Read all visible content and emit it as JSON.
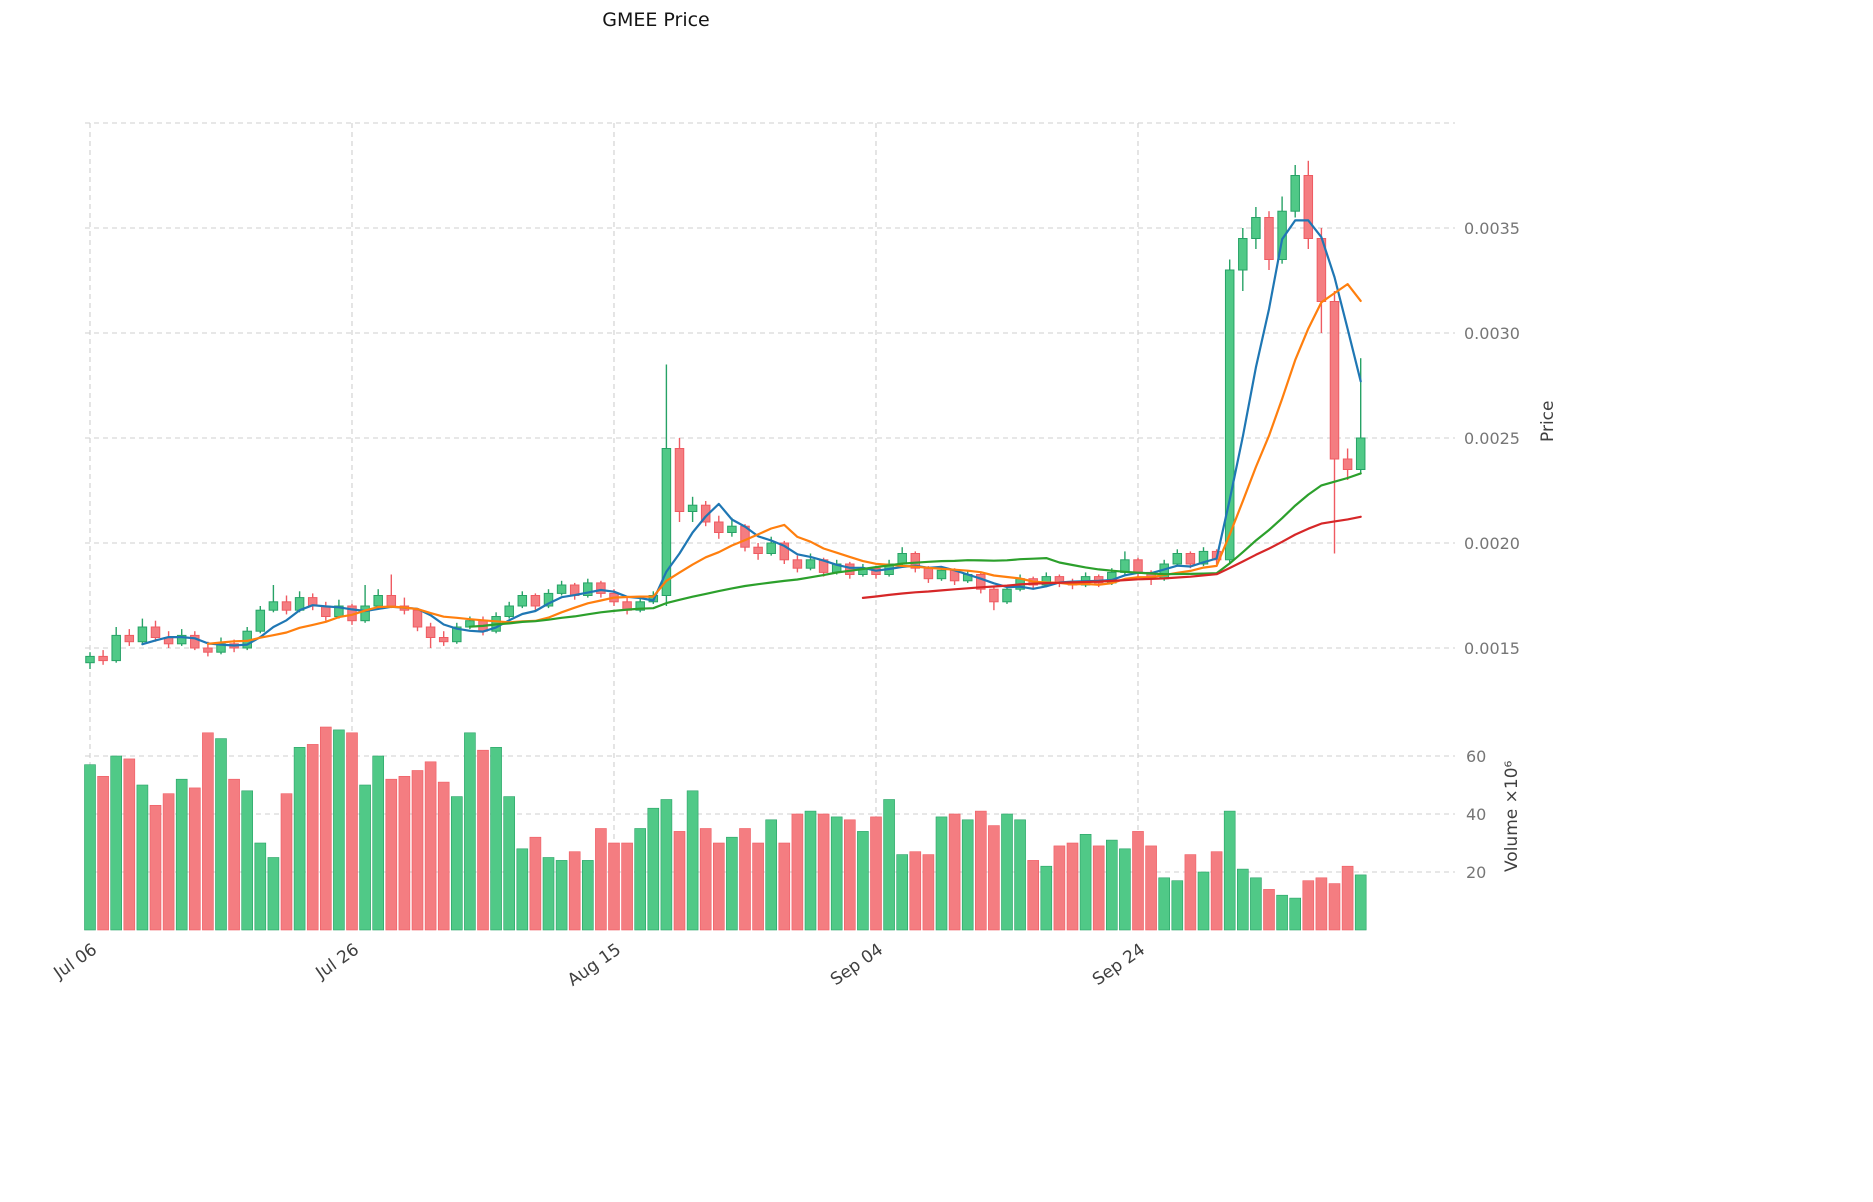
{
  "title": "GMEE Price",
  "price_axis": {
    "label": "Price",
    "ticks": [
      "0.0015",
      "0.0020",
      "0.0025",
      "0.0030",
      "0.0035"
    ]
  },
  "volume_axis": {
    "label": "Volume ×10⁶",
    "ticks": [
      "20",
      "40",
      "60"
    ]
  },
  "x_axis": {
    "tick_labels": [
      "Jul 06",
      "Jul 26",
      "Aug 15",
      "Sep 04",
      "Sep 24"
    ],
    "tick_indices": [
      0,
      20,
      40,
      60,
      80
    ]
  },
  "colors": {
    "background": "#ffffff",
    "up": "#50c987",
    "up_edge": "#27a266",
    "down": "#f47d81",
    "down_edge": "#ef5b62",
    "grid": "#cfcfcf",
    "ytick_text": "#767676",
    "xtick_text": "#3f3f3f",
    "title_text": "#141414",
    "ma_colors": [
      "#1f77b4",
      "#ff7f0e",
      "#2ca02c",
      "#d62728"
    ]
  },
  "chart_data": {
    "type": "candlestick",
    "title": "GMEE Price",
    "x_start_label": "Jul 06",
    "frequency": "daily",
    "grid": true,
    "price_unit": 0.0001,
    "ylim_price": [
      0.00125,
      0.00397
    ],
    "ylim_volume": [
      0,
      75
    ],
    "columns": [
      "open",
      "high",
      "low",
      "close",
      "volume_millions"
    ],
    "candles": [
      [
        14.3,
        14.8,
        14.0,
        14.6,
        57
      ],
      [
        14.6,
        14.9,
        14.2,
        14.4,
        53
      ],
      [
        14.4,
        16.0,
        14.3,
        15.6,
        60
      ],
      [
        15.6,
        15.9,
        15.1,
        15.3,
        59
      ],
      [
        15.3,
        16.4,
        15.2,
        16.0,
        50
      ],
      [
        16.0,
        16.3,
        15.3,
        15.5,
        43
      ],
      [
        15.5,
        15.8,
        15.0,
        15.2,
        47
      ],
      [
        15.2,
        15.9,
        15.1,
        15.6,
        52
      ],
      [
        15.6,
        15.8,
        14.9,
        15.0,
        49
      ],
      [
        15.0,
        15.3,
        14.6,
        14.8,
        68
      ],
      [
        14.8,
        15.5,
        14.7,
        15.2,
        66
      ],
      [
        15.2,
        15.4,
        14.8,
        15.0,
        52
      ],
      [
        15.0,
        16.0,
        14.9,
        15.8,
        48
      ],
      [
        15.8,
        17.0,
        15.7,
        16.8,
        30
      ],
      [
        16.8,
        18.0,
        16.7,
        17.2,
        25
      ],
      [
        17.2,
        17.5,
        16.6,
        16.8,
        47
      ],
      [
        16.8,
        17.7,
        16.7,
        17.4,
        63
      ],
      [
        17.4,
        17.6,
        16.8,
        17.0,
        64
      ],
      [
        17.0,
        17.2,
        16.3,
        16.5,
        70
      ],
      [
        16.5,
        17.3,
        16.4,
        17.0,
        69
      ],
      [
        17.0,
        17.1,
        16.1,
        16.3,
        68
      ],
      [
        16.3,
        18.0,
        16.2,
        17.0,
        50
      ],
      [
        17.0,
        17.8,
        16.9,
        17.5,
        60
      ],
      [
        17.5,
        18.5,
        16.9,
        17.0,
        52
      ],
      [
        17.0,
        17.4,
        16.6,
        16.8,
        53
      ],
      [
        16.8,
        16.9,
        15.8,
        16.0,
        55
      ],
      [
        16.0,
        16.2,
        15.0,
        15.5,
        58
      ],
      [
        15.5,
        15.8,
        15.1,
        15.3,
        51
      ],
      [
        15.3,
        16.2,
        15.2,
        16.0,
        46
      ],
      [
        16.0,
        16.5,
        15.9,
        16.3,
        68
      ],
      [
        16.3,
        16.5,
        15.6,
        15.8,
        62
      ],
      [
        15.8,
        16.7,
        15.7,
        16.5,
        63
      ],
      [
        16.5,
        17.2,
        16.4,
        17.0,
        46
      ],
      [
        17.0,
        17.7,
        16.9,
        17.5,
        28
      ],
      [
        17.5,
        17.6,
        16.8,
        17.0,
        32
      ],
      [
        17.0,
        17.8,
        16.9,
        17.6,
        25
      ],
      [
        17.6,
        18.2,
        17.5,
        18.0,
        24
      ],
      [
        18.0,
        18.1,
        17.3,
        17.5,
        27
      ],
      [
        17.5,
        18.3,
        17.4,
        18.1,
        24
      ],
      [
        18.1,
        18.2,
        17.4,
        17.6,
        35
      ],
      [
        17.6,
        17.8,
        17.0,
        17.2,
        30
      ],
      [
        17.2,
        17.4,
        16.6,
        16.8,
        30
      ],
      [
        16.8,
        17.4,
        16.7,
        17.2,
        35
      ],
      [
        17.2,
        17.7,
        17.1,
        17.5,
        42
      ],
      [
        17.5,
        28.5,
        17.0,
        24.5,
        45
      ],
      [
        24.5,
        25.0,
        21.0,
        21.5,
        34
      ],
      [
        21.5,
        22.2,
        21.0,
        21.8,
        48
      ],
      [
        21.8,
        22.0,
        20.8,
        21.0,
        35
      ],
      [
        21.0,
        21.3,
        20.2,
        20.5,
        30
      ],
      [
        20.5,
        21.2,
        20.3,
        20.8,
        32
      ],
      [
        20.8,
        20.9,
        19.6,
        19.8,
        35
      ],
      [
        19.8,
        20.0,
        19.2,
        19.5,
        30
      ],
      [
        19.5,
        20.3,
        19.4,
        20.0,
        38
      ],
      [
        20.0,
        20.1,
        19.0,
        19.2,
        30
      ],
      [
        19.2,
        19.4,
        18.6,
        18.8,
        40
      ],
      [
        18.8,
        19.5,
        18.7,
        19.2,
        41
      ],
      [
        19.2,
        19.3,
        18.4,
        18.6,
        40
      ],
      [
        18.6,
        19.2,
        18.5,
        19.0,
        39
      ],
      [
        19.0,
        19.1,
        18.3,
        18.5,
        38
      ],
      [
        18.5,
        19.0,
        18.4,
        18.8,
        34
      ],
      [
        18.8,
        18.9,
        18.3,
        18.5,
        39
      ],
      [
        18.5,
        19.2,
        18.4,
        19.0,
        45
      ],
      [
        19.0,
        19.8,
        18.9,
        19.5,
        26
      ],
      [
        19.5,
        19.6,
        18.6,
        18.8,
        27
      ],
      [
        18.8,
        18.9,
        18.1,
        18.3,
        26
      ],
      [
        18.3,
        18.9,
        18.2,
        18.7,
        39
      ],
      [
        18.7,
        18.8,
        18.0,
        18.2,
        40
      ],
      [
        18.2,
        18.7,
        18.1,
        18.5,
        38
      ],
      [
        18.5,
        18.6,
        17.6,
        17.8,
        41
      ],
      [
        17.8,
        17.9,
        16.8,
        17.2,
        36
      ],
      [
        17.2,
        18.0,
        17.1,
        17.8,
        40
      ],
      [
        17.8,
        18.5,
        17.7,
        18.3,
        38
      ],
      [
        18.3,
        18.4,
        17.8,
        18.0,
        24
      ],
      [
        18.0,
        18.6,
        17.9,
        18.4,
        22
      ],
      [
        18.4,
        18.5,
        17.9,
        18.1,
        29
      ],
      [
        18.1,
        18.3,
        17.8,
        18.0,
        30
      ],
      [
        18.0,
        18.6,
        17.9,
        18.4,
        33
      ],
      [
        18.4,
        18.5,
        17.9,
        18.1,
        29
      ],
      [
        18.1,
        18.8,
        18.0,
        18.6,
        31
      ],
      [
        18.6,
        19.6,
        18.5,
        19.2,
        28
      ],
      [
        19.2,
        19.3,
        18.4,
        18.6,
        34
      ],
      [
        18.6,
        18.7,
        18.0,
        18.3,
        29
      ],
      [
        18.3,
        19.2,
        18.2,
        19.0,
        18
      ],
      [
        19.0,
        19.7,
        18.9,
        19.5,
        17
      ],
      [
        19.5,
        19.6,
        18.8,
        19.0,
        26
      ],
      [
        19.0,
        19.8,
        18.9,
        19.6,
        20
      ],
      [
        19.6,
        19.7,
        19.0,
        19.2,
        27
      ],
      [
        19.2,
        33.5,
        19.0,
        33.0,
        41
      ],
      [
        33.0,
        35.0,
        32.0,
        34.5,
        21
      ],
      [
        34.5,
        36.0,
        34.0,
        35.5,
        18
      ],
      [
        35.5,
        35.8,
        33.0,
        33.5,
        14
      ],
      [
        33.5,
        36.5,
        33.3,
        35.8,
        12
      ],
      [
        35.8,
        38.0,
        35.5,
        37.5,
        11
      ],
      [
        37.5,
        38.2,
        34.0,
        34.5,
        17
      ],
      [
        34.5,
        35.0,
        30.0,
        31.5,
        18
      ],
      [
        31.5,
        32.0,
        19.5,
        24.0,
        16
      ],
      [
        24.0,
        24.5,
        23.0,
        23.5,
        22
      ],
      [
        23.5,
        28.8,
        23.3,
        25.0,
        19
      ]
    ],
    "moving_averages": [
      {
        "name": "MA5",
        "window": 5,
        "color": "#1f77b4"
      },
      {
        "name": "MA10",
        "window": 10,
        "color": "#ff7f0e"
      },
      {
        "name": "MA30",
        "window": 30,
        "color": "#2ca02c"
      },
      {
        "name": "MA60",
        "window": 60,
        "color": "#d62728"
      }
    ]
  }
}
